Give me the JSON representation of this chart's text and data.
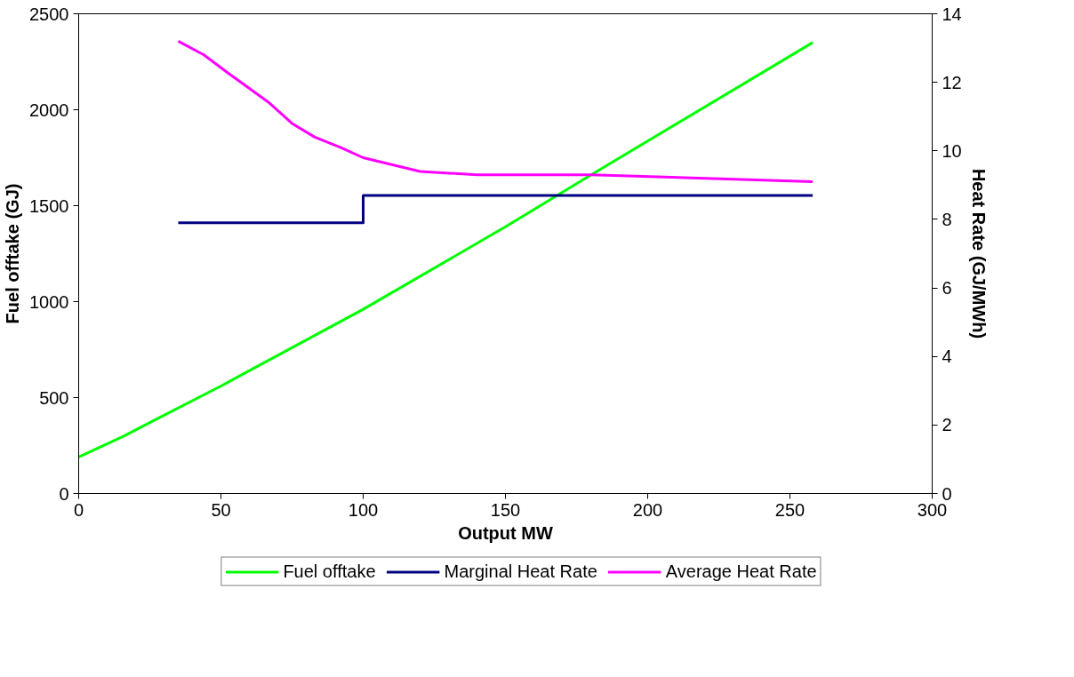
{
  "chart_data": {
    "type": "line",
    "xlabel": "Output MW",
    "ylabel": "Fuel offtake (GJ)",
    "y2label": "Heat Rate (GJ/MWh)",
    "xlim": [
      0,
      300
    ],
    "xticks": [
      0,
      50,
      100,
      150,
      200,
      250,
      300
    ],
    "ylim": [
      0,
      2500
    ],
    "yticks": [
      0,
      500,
      1000,
      1500,
      2000,
      2500
    ],
    "y2lim": [
      0,
      14
    ],
    "y2ticks": [
      0,
      2,
      4,
      6,
      8,
      10,
      12,
      14
    ],
    "grid": false,
    "legend": "bottom",
    "marker": "none",
    "line_style": "solid",
    "series": [
      {
        "name": "Fuel offtake",
        "color": "#00ff00",
        "x": [
          0,
          16,
          25,
          50,
          100,
          150,
          180,
          258
        ],
        "values": [
          190,
          300,
          370,
          560,
          960,
          1390,
          1660,
          2350
        ]
      },
      {
        "name": "Marginal Heat Rate",
        "color": "#000080",
        "axis": "y2",
        "x": [
          35,
          100,
          100,
          180,
          180,
          258
        ],
        "values": [
          7.9,
          7.9,
          8.7,
          8.7,
          8.7,
          8.7
        ]
      },
      {
        "name": "Average Heat Rate",
        "color": "#ff00ff",
        "axis": "y2",
        "x": [
          35,
          44,
          52,
          67,
          75,
          83,
          92,
          100,
          110,
          120,
          140,
          180,
          258
        ],
        "values": [
          13.2,
          12.8,
          12.3,
          11.4,
          10.8,
          10.4,
          10.1,
          9.8,
          9.6,
          9.4,
          9.3,
          9.3,
          9.1
        ]
      }
    ]
  }
}
